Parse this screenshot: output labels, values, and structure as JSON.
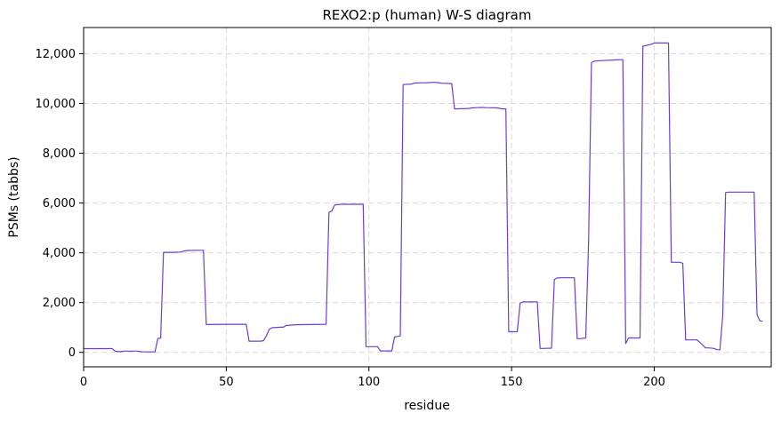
{
  "chart_data": {
    "type": "line",
    "title": "REXO2:p (human) W-S diagram",
    "xlabel": "residue",
    "ylabel": "PSMs (tabbs)",
    "xlim": [
      0,
      241
    ],
    "ylim": [
      -580,
      13050
    ],
    "x_ticks": [
      0,
      50,
      100,
      150,
      200
    ],
    "x_tick_labels": [
      "0",
      "50",
      "100",
      "150",
      "200"
    ],
    "y_ticks": [
      0,
      2000,
      4000,
      6000,
      8000,
      10000,
      12000
    ],
    "y_tick_labels": [
      "0",
      "2,000",
      "4,000",
      "6,000",
      "8,000",
      "10,000",
      "12,000"
    ],
    "grid": true,
    "line_color": "#6a3fd6",
    "series": [
      {
        "x": [
          0,
          9,
          10,
          11,
          12,
          13,
          14,
          19,
          20,
          21,
          25,
          26,
          27,
          28,
          31,
          34,
          35,
          36,
          39,
          42,
          43,
          50,
          57,
          58,
          62,
          63,
          64,
          65,
          66,
          69,
          70,
          71,
          74,
          85,
          86,
          87,
          88,
          90,
          95,
          98,
          99,
          103,
          104,
          108,
          109,
          111,
          112,
          115,
          116,
          119,
          120,
          121,
          122,
          123,
          124,
          125,
          126,
          127,
          129,
          130,
          135,
          136,
          138,
          139,
          140,
          141,
          145,
          146,
          147,
          148,
          149,
          150,
          152,
          153,
          154,
          157,
          159,
          160,
          161,
          164,
          165,
          166,
          168,
          172,
          173,
          174,
          176,
          177,
          178,
          179,
          181,
          187,
          188,
          189,
          190,
          191,
          192,
          193,
          194,
          195,
          196,
          199,
          200,
          205,
          206,
          209,
          210,
          211,
          215,
          216,
          218,
          219,
          221,
          222,
          223,
          224,
          225,
          226,
          230,
          235,
          236,
          237,
          238
        ],
        "y": [
          150,
          150,
          150,
          50,
          30,
          30,
          50,
          50,
          30,
          20,
          20,
          550,
          580,
          4020,
          4020,
          4030,
          4070,
          4090,
          4100,
          4100,
          1120,
          1130,
          1130,
          450,
          450,
          470,
          650,
          920,
          990,
          1010,
          1010,
          1080,
          1110,
          1130,
          5630,
          5680,
          5920,
          5950,
          5950,
          5950,
          230,
          230,
          60,
          60,
          620,
          660,
          10760,
          10780,
          10820,
          10830,
          10830,
          10840,
          10840,
          10850,
          10840,
          10820,
          10810,
          10810,
          10800,
          9780,
          9800,
          9820,
          9830,
          9840,
          9840,
          9830,
          9820,
          9800,
          9780,
          9780,
          830,
          830,
          830,
          1980,
          2030,
          2030,
          2030,
          160,
          160,
          170,
          2930,
          2990,
          3000,
          3000,
          550,
          550,
          580,
          4460,
          11640,
          11700,
          11720,
          11750,
          11760,
          11760,
          350,
          580,
          580,
          580,
          580,
          580,
          12300,
          12380,
          12430,
          12430,
          3620,
          3620,
          3580,
          500,
          500,
          400,
          180,
          180,
          160,
          110,
          100,
          1480,
          6420,
          6440,
          6440,
          6440,
          1520,
          1270,
          1250
        ]
      }
    ]
  }
}
